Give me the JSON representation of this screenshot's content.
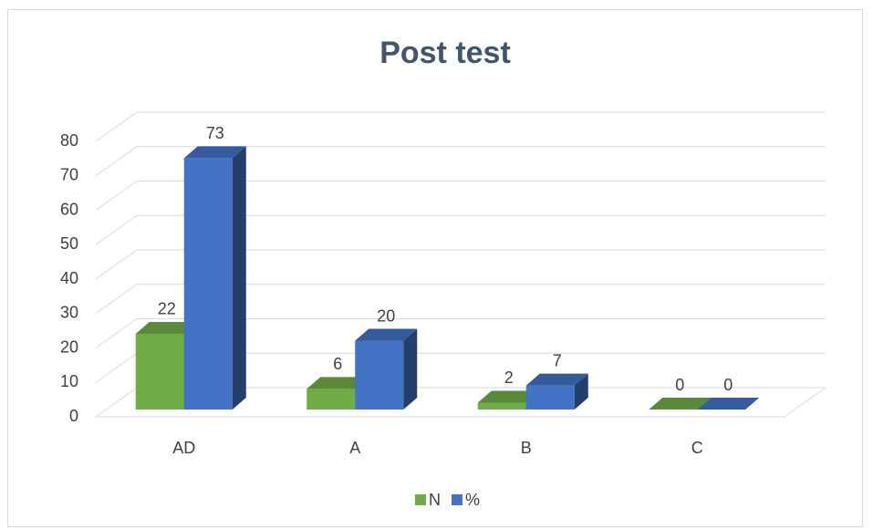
{
  "chart_data": {
    "type": "bar3d",
    "title": "Post test",
    "categories": [
      "AD",
      "A",
      "B",
      "C"
    ],
    "series": [
      {
        "name": "N",
        "color": "#70ad47",
        "values": [
          22,
          6,
          2,
          0
        ]
      },
      {
        "name": "%",
        "color": "#4472c4",
        "values": [
          73,
          20,
          7,
          0
        ]
      }
    ],
    "ylim": [
      0,
      80
    ],
    "yticks": [
      0,
      10,
      20,
      30,
      40,
      50,
      60,
      70,
      80
    ],
    "grid": true,
    "legend": "bottom"
  }
}
